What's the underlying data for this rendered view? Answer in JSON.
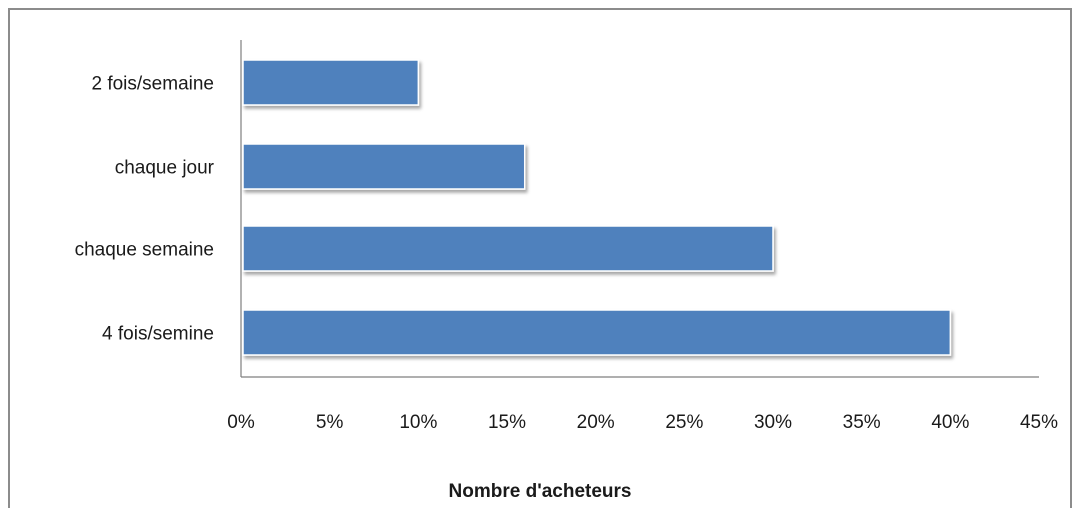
{
  "chart_data": {
    "type": "bar",
    "orientation": "horizontal",
    "categories": [
      "2 fois/semaine",
      "chaque jour",
      "chaque semaine",
      "4 fois/semine"
    ],
    "values": [
      10,
      16,
      30,
      40
    ],
    "xlabel": "Nombre d'acheteurs",
    "ylabel": "",
    "xlim": [
      0,
      45
    ],
    "x_ticks": [
      "0%",
      "5%",
      "10%",
      "15%",
      "20%",
      "25%",
      "30%",
      "35%",
      "40%",
      "45%"
    ],
    "x_tick_values": [
      0,
      5,
      10,
      15,
      20,
      25,
      30,
      35,
      40,
      45
    ],
    "unit": "%",
    "grid": false,
    "legend": "none",
    "colors": {
      "bar": "#4f81bd",
      "bar_edge": "#ffffff",
      "bar_shadow": "#9a9a9a",
      "axis": "#7f7f7f"
    }
  }
}
